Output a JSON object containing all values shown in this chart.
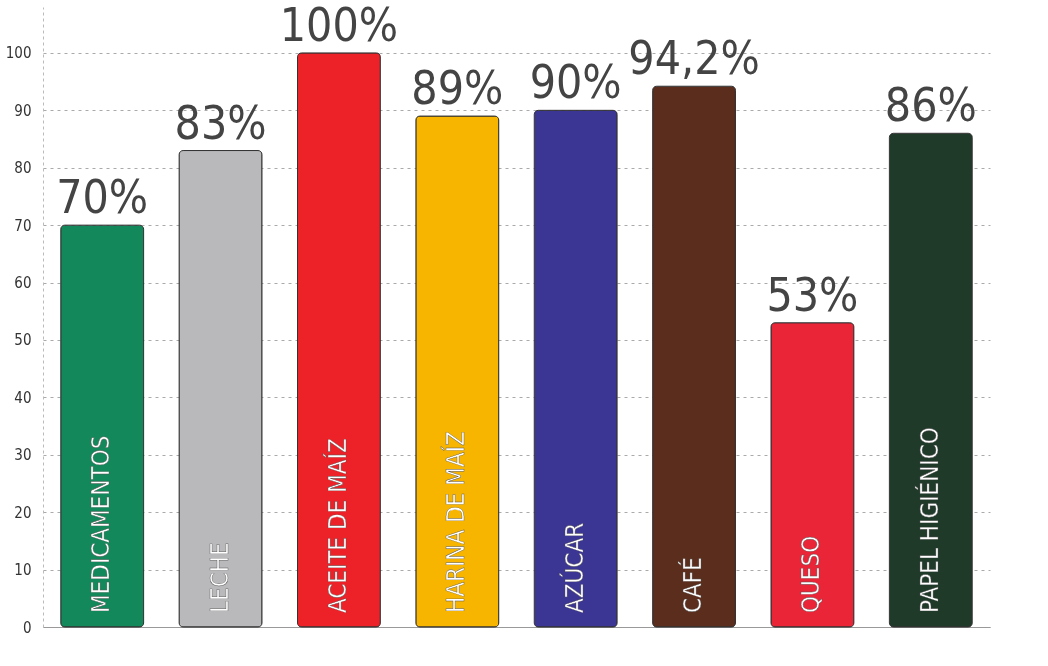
{
  "chart_data": {
    "type": "bar",
    "categories": [
      "MEDICAMENTOS",
      "LECHE",
      "ACEITE DE MAÍZ",
      "HARINA DE MAÍZ",
      "AZÚCAR",
      "CAFÉ",
      "QUESO",
      "PAPEL HIGIÉNICO"
    ],
    "values": [
      70,
      83,
      100,
      89,
      90,
      94.2,
      53,
      86
    ],
    "value_labels": [
      "70%",
      "83%",
      "100%",
      "89%",
      "90%",
      "94,2%",
      "53%",
      "86%"
    ],
    "colors": [
      "#13885a",
      "#b9b9bb",
      "#ec2228",
      "#f8b500",
      "#3b3593",
      "#5b2d1d",
      "#ea2538",
      "#203a2a"
    ],
    "ylim": [
      0,
      108
    ],
    "yticks": [
      0,
      10,
      20,
      30,
      40,
      50,
      60,
      70,
      80,
      90,
      100
    ],
    "grid": "y",
    "tick_labels": "y"
  }
}
